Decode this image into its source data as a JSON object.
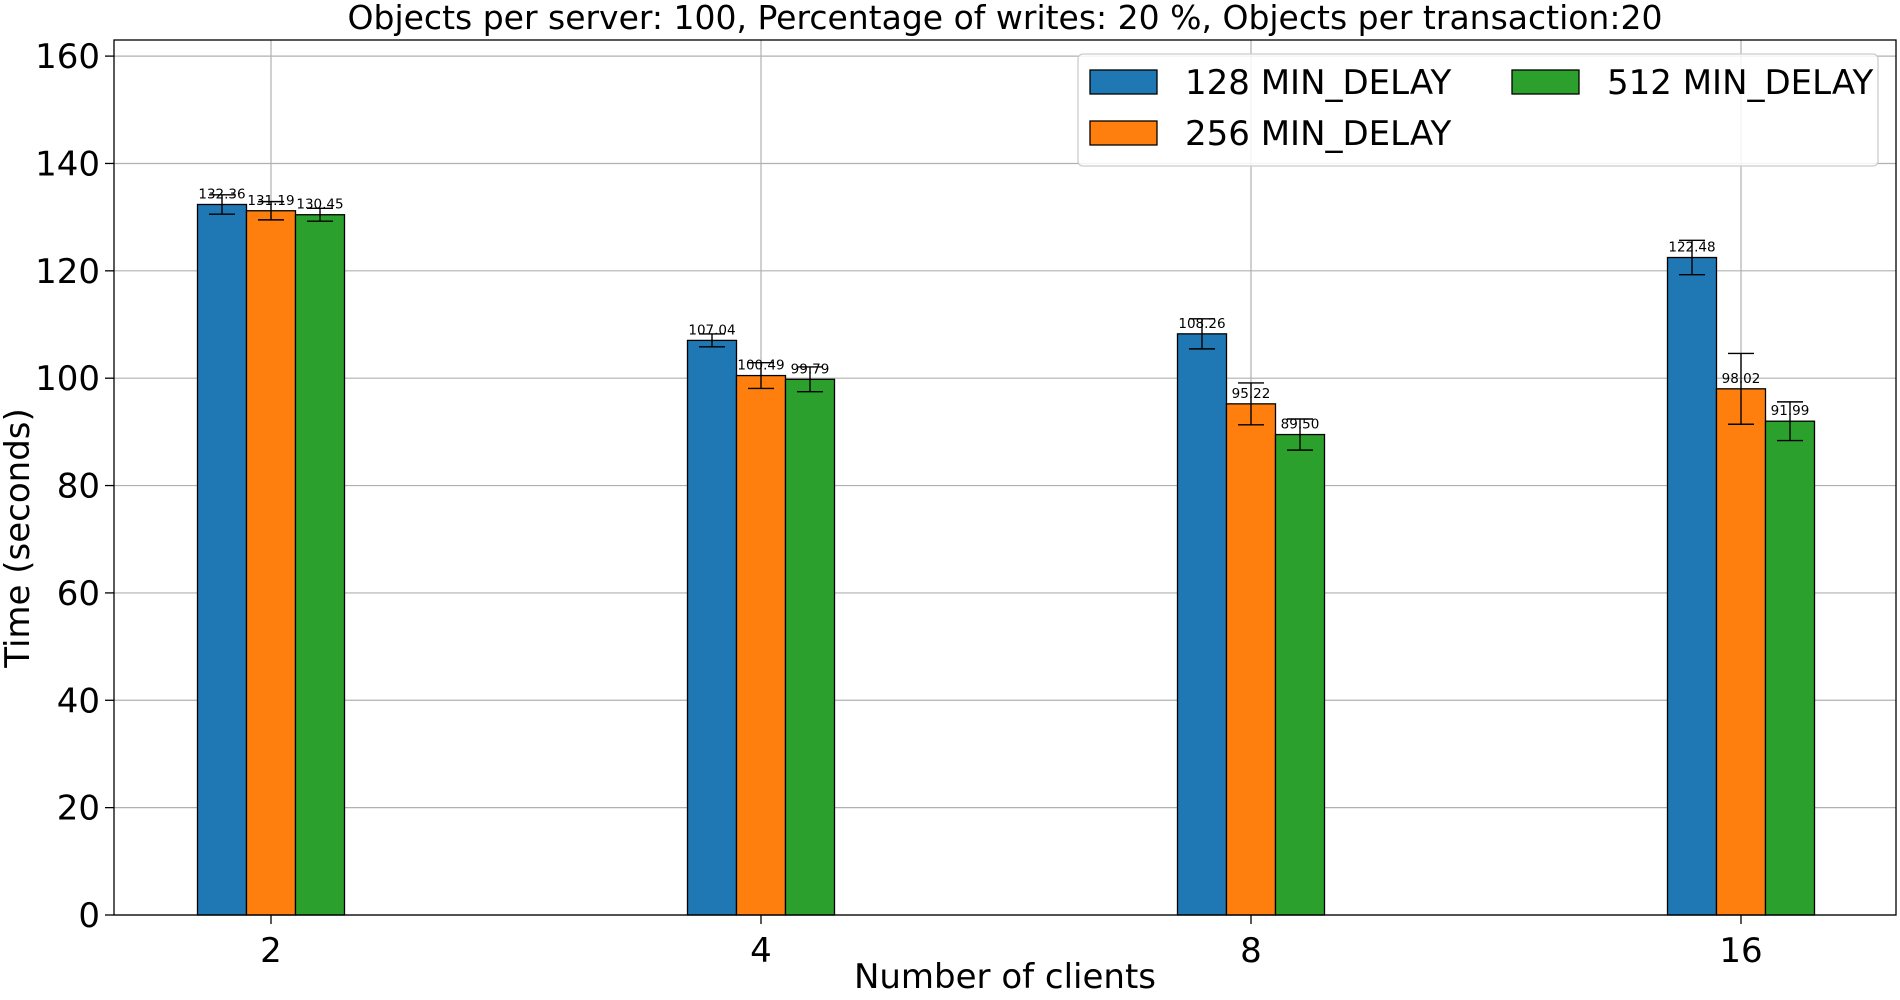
{
  "chart_data": {
    "type": "bar",
    "title": "Objects per server: 100, Percentage of writes: 20 %, Objects per transaction:20",
    "xlabel": "Number of clients",
    "ylabel": "Time (seconds)",
    "categories": [
      "2",
      "4",
      "8",
      "16"
    ],
    "ylim": [
      0,
      163
    ],
    "yticks": [
      0,
      20,
      40,
      60,
      80,
      100,
      120,
      140,
      160
    ],
    "grid": true,
    "legend_position": "top-right",
    "series": [
      {
        "name": "128 MIN_DELAY",
        "color": "#1f77b4",
        "values": [
          132.36,
          107.04,
          108.26,
          122.48
        ],
        "labels": [
          "132.36",
          "107.04",
          "108.26",
          "122.48"
        ],
        "errors": [
          1.8,
          1.2,
          2.8,
          3.2
        ]
      },
      {
        "name": "256 MIN_DELAY",
        "color": "#ff7f0e",
        "values": [
          131.19,
          100.49,
          95.22,
          98.02
        ],
        "labels": [
          "131.19",
          "100.49",
          "95.22",
          "98.02"
        ],
        "errors": [
          1.7,
          2.4,
          3.9,
          6.6
        ]
      },
      {
        "name": "512 MIN_DELAY",
        "color": "#2ca02c",
        "values": [
          130.45,
          99.79,
          89.5,
          91.99
        ],
        "labels": [
          "130.45",
          "99.79",
          "89.50",
          "91.99"
        ],
        "errors": [
          1.2,
          2.3,
          2.9,
          3.6
        ]
      }
    ]
  }
}
